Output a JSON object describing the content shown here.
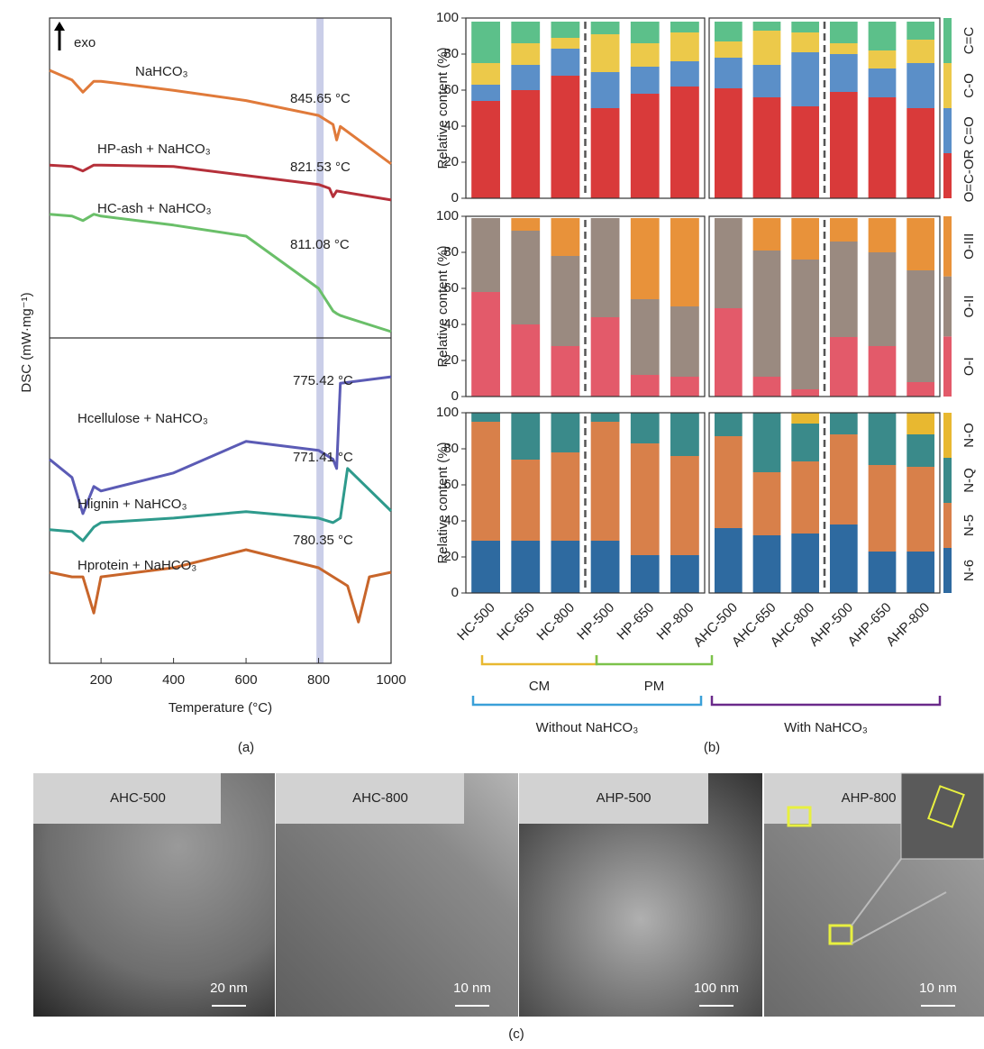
{
  "panel_labels": [
    "(a)",
    "(b)",
    "(c)"
  ],
  "chart_data": [
    {
      "type": "line",
      "xlabel": "Temperature (°C)",
      "ylabel": "DSC (mW·mg⁻¹)",
      "annotation": "exo",
      "xlim": [
        58,
        1000
      ],
      "xticks": [
        200,
        400,
        600,
        800,
        1000
      ],
      "ylim": [
        0,
        100
      ],
      "highlight_x": 804,
      "series": [
        {
          "name": "NaHCO₃",
          "color": "#e07a3a",
          "annotation": "845.65 °C",
          "x": [
            58,
            120,
            150,
            180,
            200,
            400,
            600,
            800,
            840,
            850,
            860,
            1000
          ],
          "values": [
            91.9,
            90.4,
            88.5,
            90.2,
            90.2,
            88.8,
            87.2,
            84.9,
            83.5,
            81.1,
            83.2,
            77.4
          ]
        },
        {
          "name": "HP-ash + NaHCO₃",
          "color": "#b5303a",
          "annotation": "821.53 °C",
          "x": [
            58,
            120,
            150,
            180,
            200,
            400,
            600,
            800,
            830,
            840,
            850,
            1000
          ],
          "values": [
            77.2,
            77.0,
            76.3,
            77.2,
            77.2,
            77.0,
            75.6,
            74.2,
            73.6,
            72.3,
            73.2,
            71.8
          ]
        },
        {
          "name": "HC-ash + NaHCO₃",
          "color": "#6abf69",
          "annotation": "811.08 °C",
          "x": [
            58,
            120,
            150,
            180,
            200,
            400,
            600,
            800,
            840,
            850,
            860,
            1000
          ],
          "values": [
            69.6,
            69.3,
            68.6,
            69.6,
            69.3,
            67.9,
            66.2,
            58.1,
            54.6,
            54.2,
            53.9,
            51.4
          ]
        },
        {
          "name": "Hcellulose + NaHCO₃",
          "color": "#5b5bb5",
          "annotation": "775.42 °C",
          "x": [
            58,
            120,
            150,
            180,
            200,
            400,
            600,
            800,
            840,
            850,
            860,
            1000
          ],
          "values": [
            31.6,
            28.8,
            23.2,
            27.4,
            26.7,
            29.5,
            34.4,
            33.0,
            31.6,
            30.2,
            43.4,
            44.4
          ]
        },
        {
          "name": "Hlignin + NaHCO₃",
          "color": "#2e9a8c",
          "annotation": "771.41 °C",
          "x": [
            58,
            120,
            150,
            180,
            200,
            400,
            600,
            800,
            840,
            860,
            880,
            1000
          ],
          "values": [
            20.7,
            20.4,
            19.0,
            21.1,
            21.8,
            22.5,
            23.5,
            22.5,
            21.8,
            22.5,
            30.2,
            23.6
          ]
        },
        {
          "name": "Hprotein + NaHCO₃",
          "color": "#c8652a",
          "annotation": "780.35 °C",
          "x": [
            58,
            120,
            150,
            180,
            200,
            400,
            600,
            800,
            880,
            910,
            940,
            1000
          ],
          "values": [
            14.1,
            13.4,
            13.4,
            7.8,
            13.4,
            14.8,
            17.6,
            14.8,
            12.0,
            6.4,
            13.4,
            14.1
          ]
        }
      ]
    },
    {
      "type": "stacked-bar",
      "categories": [
        "HC-500",
        "HC-650",
        "HC-800",
        "HP-500",
        "HP-650",
        "HP-800",
        "AHC-500",
        "AHC-650",
        "AHC-800",
        "AHP-500",
        "AHP-650",
        "AHP-800"
      ],
      "brackets": [
        {
          "label": "CM",
          "color": "#e8b830"
        },
        {
          "label": "PM",
          "color": "#7cc24a"
        },
        {
          "label": "Without NaHCO₃",
          "color": "#3aa0d8"
        },
        {
          "label": "With NaHCO₃",
          "color": "#6a2a8a"
        }
      ],
      "rows": [
        {
          "ylabel": "Relative content (%)",
          "ylim": [
            0,
            100
          ],
          "yticks": [
            0,
            20,
            40,
            60,
            80,
            100
          ],
          "series": [
            {
              "name": "O=C-OR",
              "color": "#d93a3a",
              "values": [
                54,
                60,
                68,
                50,
                58,
                62,
                61,
                56,
                51,
                59,
                56,
                50
              ]
            },
            {
              "name": "C=O",
              "color": "#5b8fc8",
              "values": [
                9,
                14,
                15,
                20,
                15,
                14,
                17,
                18,
                30,
                21,
                16,
                25
              ]
            },
            {
              "name": "C-O",
              "color": "#ecc94a",
              "values": [
                12,
                12,
                6,
                21,
                13,
                16,
                9,
                19,
                11,
                6,
                10,
                13
              ]
            },
            {
              "name": "C=C",
              "color": "#5cc08a",
              "values": [
                23,
                12,
                9,
                7,
                12,
                6,
                11,
                5,
                6,
                12,
                16,
                10
              ]
            }
          ]
        },
        {
          "ylabel": "Relative content (%)",
          "ylim": [
            0,
            100
          ],
          "yticks": [
            0,
            20,
            40,
            60,
            80,
            100
          ],
          "series": [
            {
              "name": "O-I",
              "color": "#e35a6a",
              "values": [
                58,
                40,
                28,
                44,
                12,
                11,
                49,
                11,
                4,
                33,
                28,
                8
              ]
            },
            {
              "name": "O-II",
              "color": "#9a8a80",
              "values": [
                41,
                52,
                50,
                55,
                42,
                39,
                50,
                70,
                72,
                53,
                52,
                62
              ]
            },
            {
              "name": "O-III",
              "color": "#e8923a",
              "values": [
                0,
                7,
                21,
                0,
                45,
                49,
                0,
                18,
                23,
                13,
                19,
                29
              ]
            }
          ]
        },
        {
          "ylabel": "Relative content (%)",
          "ylim": [
            0,
            100
          ],
          "yticks": [
            0,
            20,
            40,
            60,
            80,
            100
          ],
          "series": [
            {
              "name": "N-6",
              "color": "#2e6aa0",
              "values": [
                29,
                29,
                29,
                29,
                21,
                21,
                36,
                32,
                33,
                38,
                23,
                23
              ]
            },
            {
              "name": "N-5",
              "color": "#d8804a",
              "values": [
                66,
                45,
                49,
                66,
                62,
                55,
                51,
                35,
                40,
                50,
                48,
                47
              ]
            },
            {
              "name": "N-Q",
              "color": "#3a8a8a",
              "values": [
                5,
                26,
                22,
                5,
                17,
                24,
                13,
                33,
                21,
                12,
                29,
                18
              ]
            },
            {
              "name": "N-O",
              "color": "#e8b830",
              "values": [
                0,
                0,
                0,
                0,
                0,
                0,
                0,
                0,
                6,
                0,
                0,
                12
              ]
            }
          ]
        }
      ]
    }
  ],
  "images": [
    {
      "label": "AHC-500",
      "scale_bar": "20 nm"
    },
    {
      "label": "AHC-800",
      "scale_bar": "10 nm"
    },
    {
      "label": "AHP-500",
      "scale_bar": "100 nm"
    },
    {
      "label": "AHP-800",
      "scale_bar": "10 nm"
    }
  ]
}
